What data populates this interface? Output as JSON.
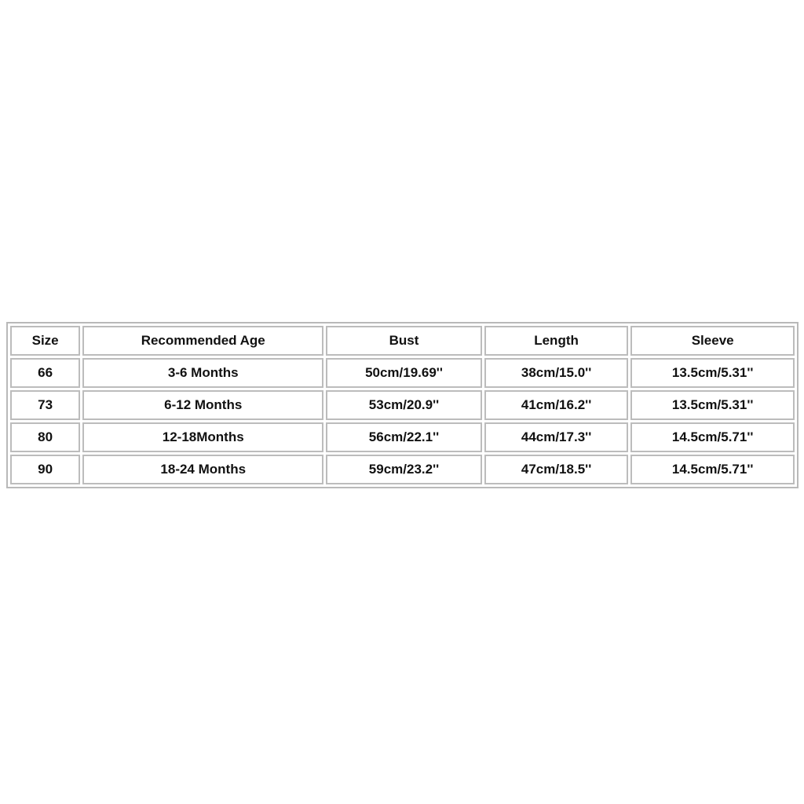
{
  "table": {
    "headers": [
      "Size",
      "Recommended Age",
      "Bust",
      "Length",
      "Sleeve"
    ],
    "rows": [
      [
        "66",
        "3-6 Months",
        "50cm/19.69''",
        "38cm/15.0''",
        "13.5cm/5.31''"
      ],
      [
        "73",
        "6-12 Months",
        "53cm/20.9''",
        "41cm/16.2''",
        "13.5cm/5.31''"
      ],
      [
        "80",
        "12-18Months",
        "56cm/22.1''",
        "44cm/17.3''",
        "14.5cm/5.71''"
      ],
      [
        "90",
        "18-24 Months",
        "59cm/23.2''",
        "47cm/18.5''",
        "14.5cm/5.71''"
      ]
    ]
  }
}
